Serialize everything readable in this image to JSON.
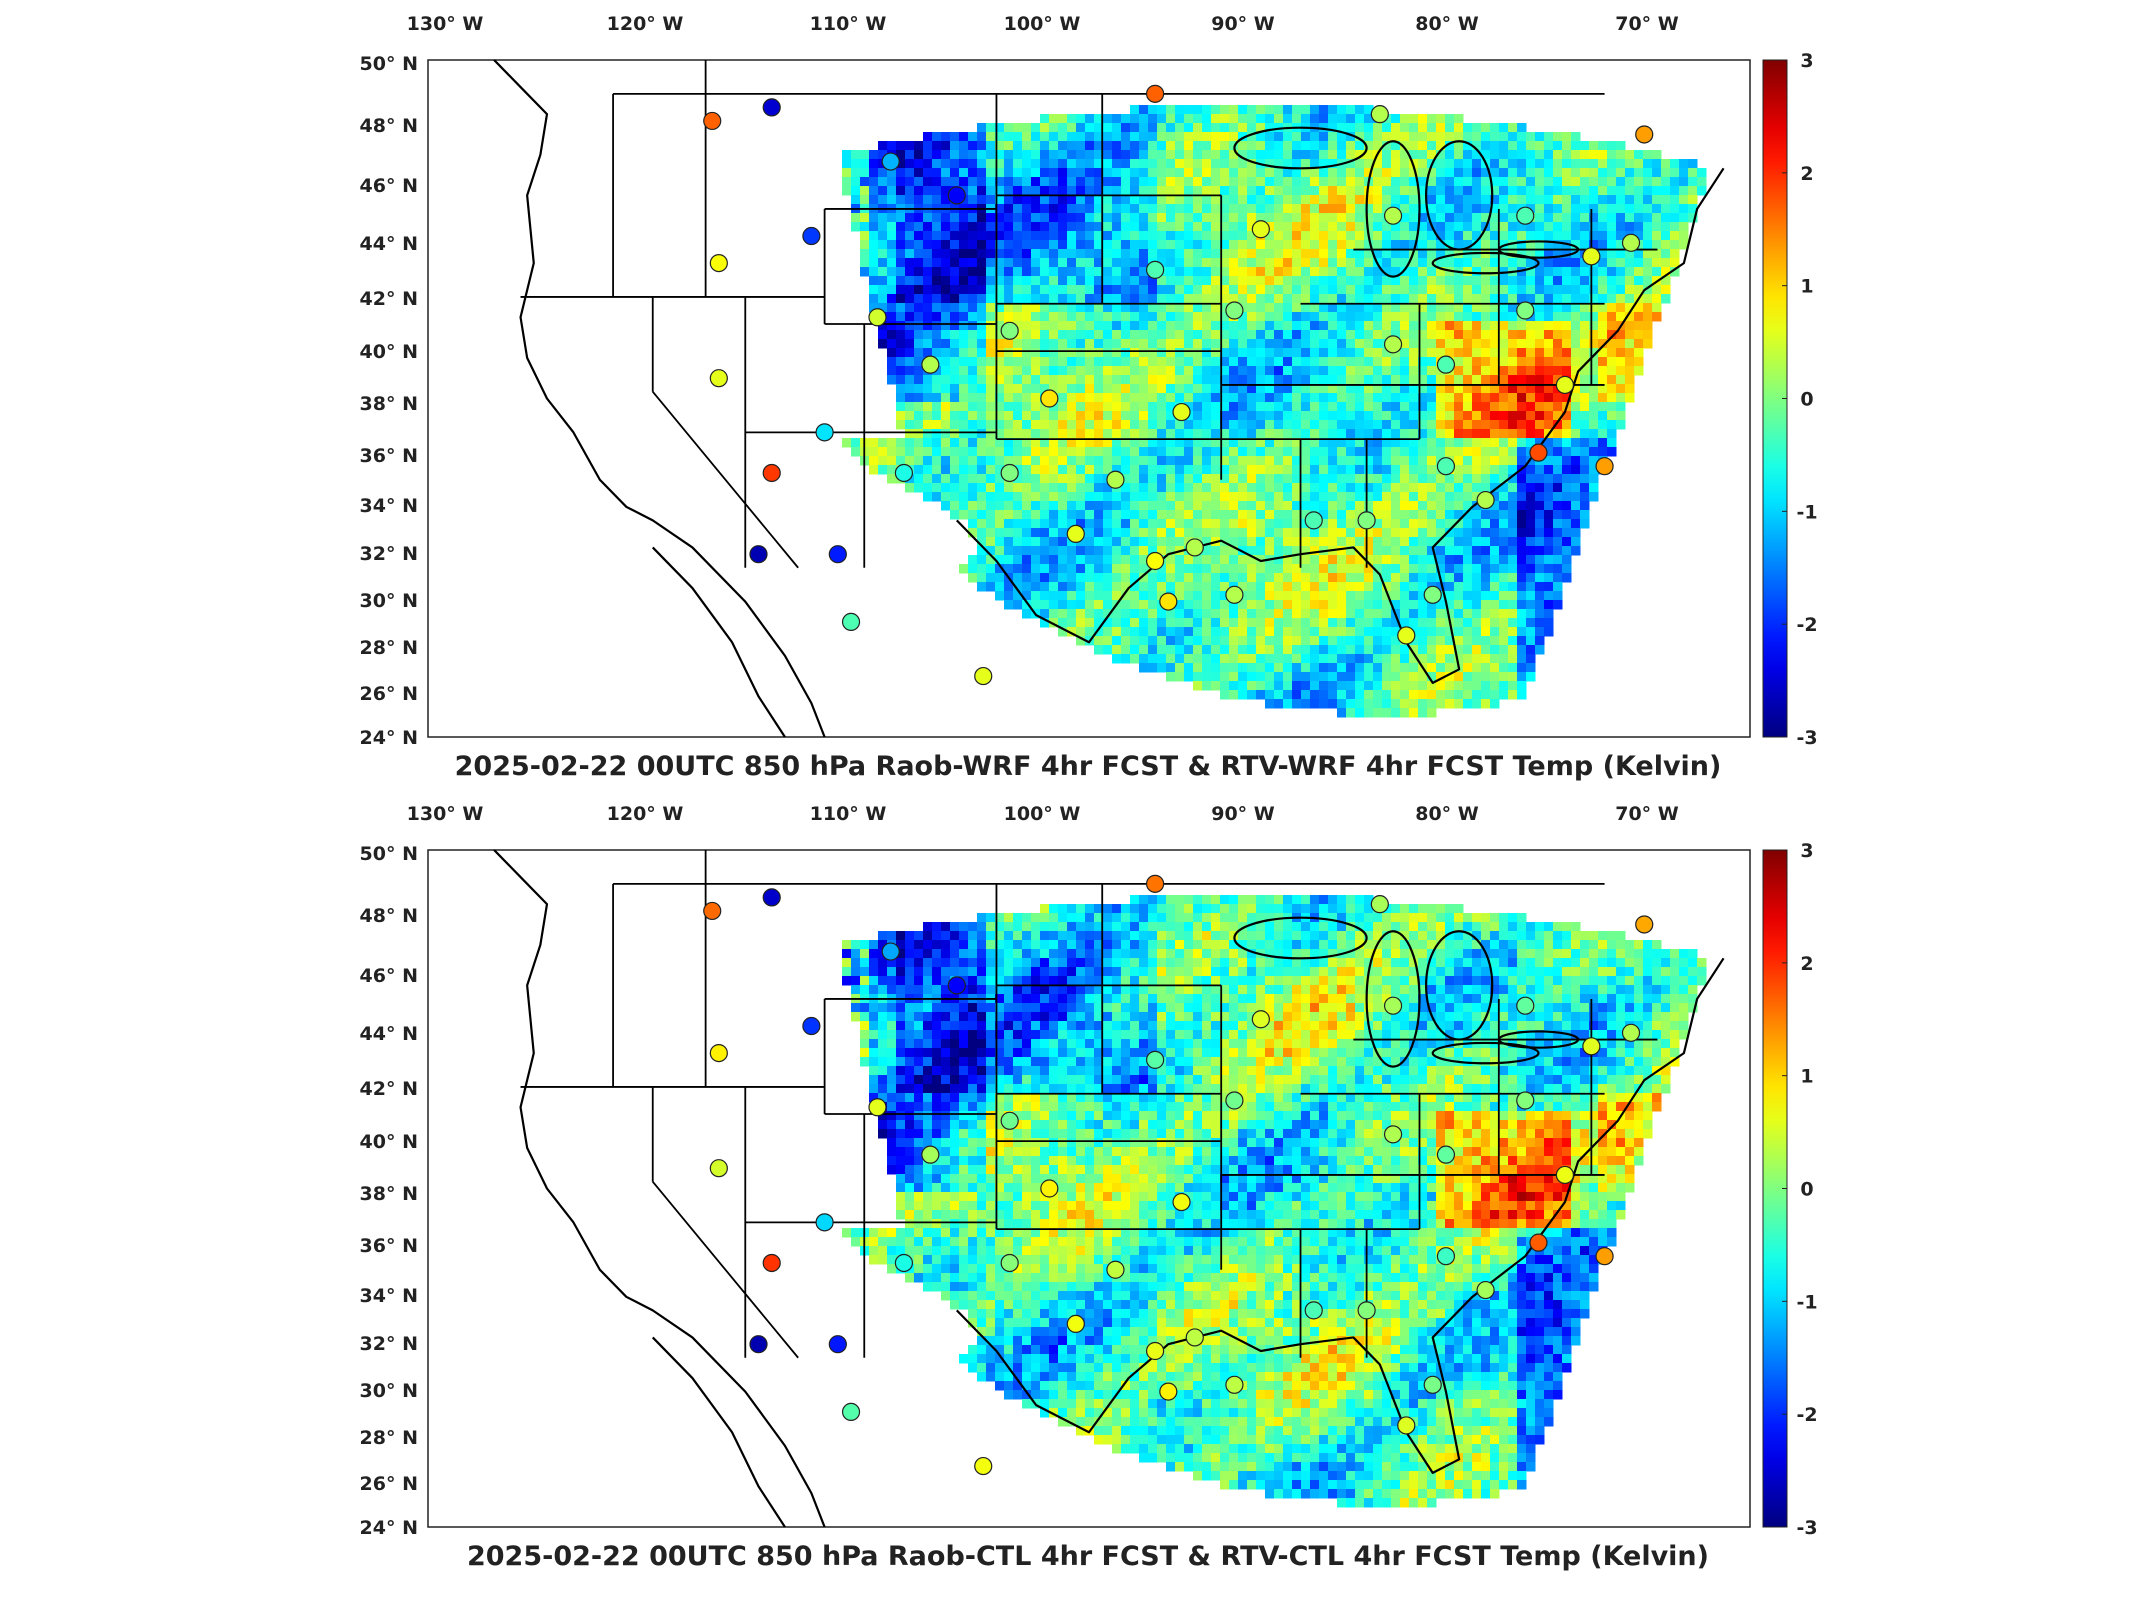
{
  "panels": [
    {
      "title": "2025-02-22 00UTC 850 hPa Raob-WRF 4hr FCST & RTV-WRF 4hr FCST Temp (Kelvin)"
    },
    {
      "title": "2025-02-22 00UTC 850 hPa Raob-CTL 4hr FCST & RTV-CTL 4hr FCST Temp (Kelvin)"
    }
  ],
  "lon_labels": [
    "130° W",
    "120° W",
    "110° W",
    "100° W",
    "90° W",
    "80° W",
    "70° W"
  ],
  "lat_labels": [
    "50° N",
    "48° N",
    "46° N",
    "44° N",
    "42° N",
    "40° N",
    "38° N",
    "36° N",
    "34° N",
    "32° N",
    "30° N",
    "28° N",
    "26° N",
    "24° N"
  ],
  "colorbar": {
    "ticks": [
      "3",
      "2",
      "1",
      "0",
      "-1",
      "-2",
      "-3"
    ],
    "colormap": "jet",
    "range": [
      -3,
      3
    ]
  },
  "colors": {
    "min": "#00008f",
    "blue": "#0050ff",
    "cyan": "#00e0ff",
    "green": "#80ff80",
    "yellow": "#ffee00",
    "orange": "#ff8000",
    "max": "#800000"
  }
}
